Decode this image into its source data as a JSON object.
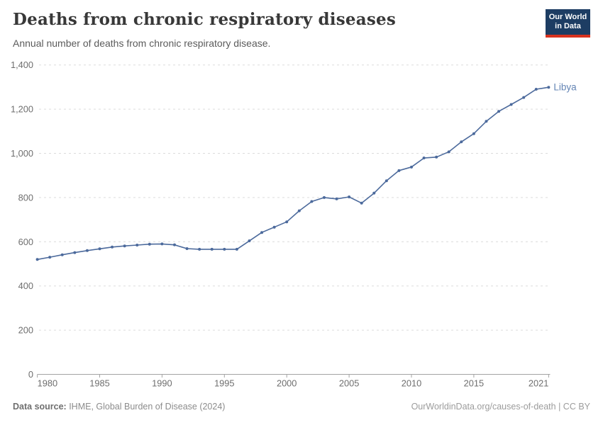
{
  "header": {
    "title": "Deaths from chronic respiratory diseases",
    "subtitle": "Annual number of deaths from chronic respiratory disease."
  },
  "logo": {
    "line1": "Our World",
    "line2": "in Data",
    "bg_color": "#1d3d63",
    "bar_color": "#d8321f"
  },
  "footer": {
    "source_label": "Data source:",
    "source_text": " IHME, Global Burden of Disease (2024)",
    "right_text": "OurWorldinData.org/causes-of-death | CC BY"
  },
  "chart_data": {
    "type": "line",
    "title": "Deaths from chronic respiratory diseases",
    "subtitle": "Annual number of deaths from chronic respiratory disease.",
    "xlabel": "",
    "ylabel": "",
    "ylim": [
      0,
      1400
    ],
    "yticks": [
      0,
      200,
      400,
      600,
      800,
      1000,
      1200,
      1400
    ],
    "xticks": [
      1980,
      1985,
      1990,
      1995,
      2000,
      2005,
      2010,
      2015,
      2021
    ],
    "grid": "dashed-horizontal",
    "legend_position": "end-of-line-label",
    "colors": {
      "line": "#4c6a9c",
      "marker": "#4c6a9c",
      "entity_label": "#6384b4",
      "gridline": "#dcdcdc",
      "axis": "#a3a3a3",
      "tick_label": "#6e6e6e"
    },
    "series": [
      {
        "name": "Libya",
        "x": [
          1980,
          1981,
          1982,
          1983,
          1984,
          1985,
          1986,
          1987,
          1988,
          1989,
          1990,
          1991,
          1992,
          1993,
          1994,
          1995,
          1996,
          1997,
          1998,
          1999,
          2000,
          2001,
          2002,
          2003,
          2004,
          2005,
          2006,
          2007,
          2008,
          2009,
          2010,
          2011,
          2012,
          2013,
          2014,
          2015,
          2016,
          2017,
          2018,
          2019,
          2020,
          2021
        ],
        "values": [
          520,
          530,
          541,
          551,
          560,
          568,
          576,
          581,
          585,
          589,
          590,
          586,
          569,
          566,
          566,
          566,
          566,
          604,
          642,
          666,
          690,
          740,
          782,
          800,
          794,
          803,
          775,
          820,
          876,
          922,
          938,
          979,
          983,
          1007,
          1052,
          1089,
          1145,
          1190,
          1221,
          1253,
          1290,
          1299
        ]
      }
    ]
  }
}
